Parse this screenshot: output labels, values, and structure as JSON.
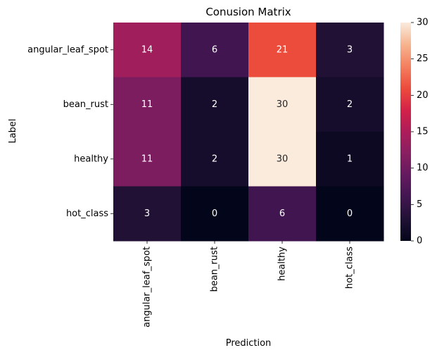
{
  "chart_data": {
    "type": "heatmap",
    "title": "Conusion Matrix",
    "xlabel": "Prediction",
    "ylabel": "Label",
    "x_categories": [
      "angular_leaf_spot",
      "bean_rust",
      "healthy",
      "hot_class"
    ],
    "y_categories": [
      "angular_leaf_spot",
      "bean_rust",
      "healthy",
      "hot_class"
    ],
    "values": [
      [
        14,
        6,
        21,
        3
      ],
      [
        11,
        2,
        30,
        2
      ],
      [
        11,
        2,
        30,
        1
      ],
      [
        3,
        0,
        6,
        0
      ]
    ],
    "colorbar": {
      "min": 0,
      "max": 30,
      "ticks": [
        "0",
        "5",
        "10",
        "15",
        "20",
        "25",
        "30"
      ],
      "colormap": "rocket"
    },
    "grid": false
  }
}
